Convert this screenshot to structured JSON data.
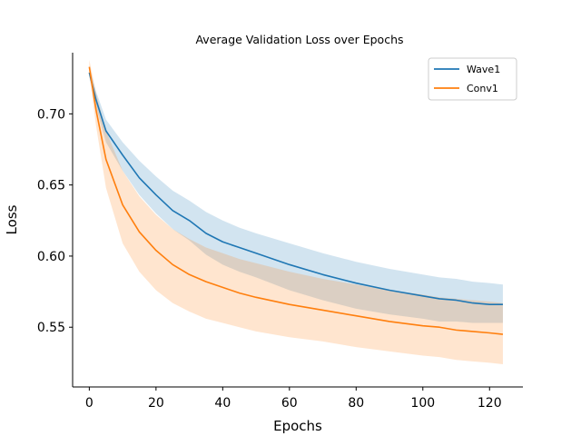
{
  "chart_data": {
    "type": "line",
    "title": "Average Validation Loss over Epochs",
    "xlabel": "Epochs",
    "ylabel": "Loss",
    "xlim": [
      -5,
      130
    ],
    "ylim": [
      0.508,
      0.743
    ],
    "xticks": [
      0,
      20,
      40,
      60,
      80,
      100,
      120
    ],
    "yticks": [
      0.55,
      0.6,
      0.65,
      0.7
    ],
    "ytick_labels": [
      "0.55",
      "0.60",
      "0.65",
      "0.70"
    ],
    "grid": false,
    "legend_position": "top-right",
    "x_points": [
      0,
      2,
      5,
      10,
      15,
      20,
      25,
      30,
      35,
      40,
      45,
      50,
      60,
      70,
      80,
      90,
      100,
      105,
      110,
      115,
      120,
      124
    ],
    "series": [
      {
        "name": "Wave1",
        "color": "#1f77b4",
        "band_color": "#1f77b4",
        "mean": [
          0.729,
          0.71,
          0.688,
          0.671,
          0.655,
          0.643,
          0.632,
          0.625,
          0.616,
          0.61,
          0.606,
          0.602,
          0.594,
          0.587,
          0.581,
          0.576,
          0.572,
          0.57,
          0.569,
          0.567,
          0.566,
          0.566
        ],
        "lower": [
          0.726,
          0.705,
          0.68,
          0.66,
          0.643,
          0.63,
          0.619,
          0.611,
          0.601,
          0.594,
          0.589,
          0.585,
          0.576,
          0.569,
          0.563,
          0.559,
          0.556,
          0.554,
          0.554,
          0.553,
          0.553,
          0.553
        ],
        "upper": [
          0.733,
          0.716,
          0.696,
          0.68,
          0.667,
          0.656,
          0.646,
          0.639,
          0.631,
          0.625,
          0.62,
          0.616,
          0.609,
          0.602,
          0.596,
          0.591,
          0.587,
          0.585,
          0.584,
          0.582,
          0.581,
          0.58
        ]
      },
      {
        "name": "Conv1",
        "color": "#ff7f0e",
        "band_color": "#ff7f0e",
        "mean": [
          0.733,
          0.703,
          0.668,
          0.636,
          0.617,
          0.604,
          0.594,
          0.587,
          0.582,
          0.578,
          0.574,
          0.571,
          0.566,
          0.562,
          0.558,
          0.554,
          0.551,
          0.55,
          0.548,
          0.547,
          0.546,
          0.545
        ],
        "lower": [
          0.728,
          0.692,
          0.648,
          0.609,
          0.589,
          0.576,
          0.567,
          0.561,
          0.556,
          0.553,
          0.55,
          0.547,
          0.543,
          0.54,
          0.536,
          0.533,
          0.53,
          0.529,
          0.527,
          0.526,
          0.525,
          0.524
        ],
        "upper": [
          0.738,
          0.715,
          0.688,
          0.66,
          0.642,
          0.629,
          0.619,
          0.612,
          0.606,
          0.602,
          0.598,
          0.595,
          0.589,
          0.584,
          0.58,
          0.576,
          0.573,
          0.571,
          0.57,
          0.569,
          0.568,
          0.567
        ]
      }
    ]
  }
}
